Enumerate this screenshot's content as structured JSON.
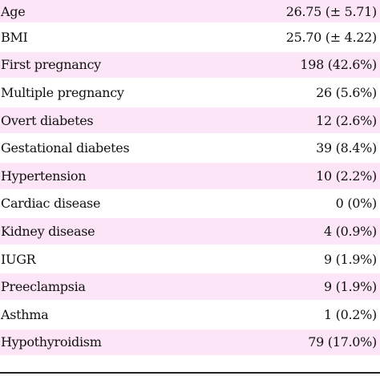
{
  "rows": [
    {
      "label": "Age",
      "value": "26.75 (± 5.71)"
    },
    {
      "label": "BMI",
      "value": "25.70 (± 4.22)"
    },
    {
      "label": "First pregnancy",
      "value": "198 (42.6%)"
    },
    {
      "label": "Multiple pregnancy",
      "value": "26 (5.6%)"
    },
    {
      "label": "Overt diabetes",
      "value": "12 (2.6%)"
    },
    {
      "label": "Gestational diabetes",
      "value": "39 (8.4%)"
    },
    {
      "label": "Hypertension",
      "value": "10 (2.2%)"
    },
    {
      "label": "Cardiac disease",
      "value": "0 (0%)"
    },
    {
      "label": "Kidney disease",
      "value": "4 (0.9%)"
    },
    {
      "label": "IUGR",
      "value": "9 (1.9%)"
    },
    {
      "label": "Preeclampsia",
      "value": "9 (1.9%)"
    },
    {
      "label": "Asthma",
      "value": "1 (0.2%)"
    },
    {
      "label": "Hypothyroidism",
      "value": "79 (17.0%)"
    }
  ],
  "colors": {
    "shaded_row": "#fbe5f6",
    "plain_row": "#ffffff",
    "text": "#111111",
    "rule": "#222222"
  }
}
